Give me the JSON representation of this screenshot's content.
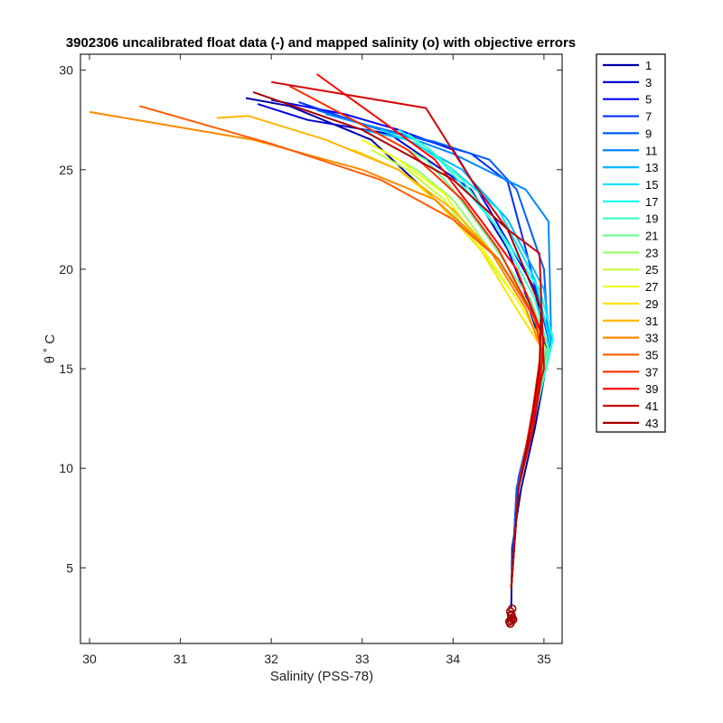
{
  "chart_data": {
    "type": "line",
    "title": "3902306 uncalibrated float data (-) and mapped salinity (o) with objective errors",
    "xlabel": "Salinity (PSS-78)",
    "ylabel": "θ ˚ C",
    "xlim": [
      29.9,
      35.2
    ],
    "ylim": [
      1.2,
      30.8
    ],
    "xticks": [
      "30",
      "31",
      "32",
      "33",
      "34",
      "35"
    ],
    "yticks": [
      "5",
      "10",
      "15",
      "20",
      "25",
      "30"
    ],
    "grid": false,
    "legend_position": "outside-right",
    "colormap": "jet",
    "legend": [
      "1",
      "3",
      "5",
      "7",
      "9",
      "11",
      "13",
      "15",
      "17",
      "19",
      "21",
      "23",
      "25",
      "27",
      "29",
      "31",
      "33",
      "35",
      "37",
      "39",
      "41",
      "43"
    ],
    "series": [
      {
        "name": "1",
        "x": [
          31.72,
          32.2,
          33.1,
          33.8,
          34.4,
          34.8,
          34.95,
          35.0,
          34.9,
          34.75,
          34.65,
          34.64
        ],
        "y": [
          28.6,
          28.2,
          26.5,
          23.5,
          21.0,
          18.5,
          16.5,
          14.5,
          12.0,
          9.0,
          6.0,
          3.0
        ]
      },
      {
        "name": "3",
        "x": [
          31.85,
          32.4,
          33.3,
          34.2,
          34.6,
          34.95,
          35.0,
          34.88,
          34.72,
          34.64
        ],
        "y": [
          28.3,
          27.5,
          26.8,
          24.0,
          21.0,
          17.0,
          15.5,
          12.5,
          9.0,
          4.0
        ]
      },
      {
        "name": "5",
        "x": [
          32.0,
          32.8,
          33.4,
          34.0,
          34.4,
          34.9,
          35.02,
          34.9,
          34.72,
          34.64
        ],
        "y": [
          28.5,
          27.8,
          27.0,
          26.0,
          23.0,
          19.0,
          16.0,
          13.0,
          9.5,
          4.0
        ]
      },
      {
        "name": "7",
        "x": [
          32.3,
          33.0,
          33.6,
          34.2,
          34.6,
          34.8,
          35.05,
          34.9,
          34.7,
          34.64
        ],
        "y": [
          28.4,
          27.3,
          26.6,
          25.8,
          24.4,
          21.0,
          16.5,
          13.0,
          9.0,
          4.0
        ]
      },
      {
        "name": "9",
        "x": [
          32.5,
          33.2,
          33.8,
          34.4,
          34.7,
          35.0,
          35.05,
          34.9,
          34.7,
          34.64
        ],
        "y": [
          28.0,
          27.0,
          26.4,
          25.5,
          24.0,
          20.0,
          16.3,
          13.0,
          9.0,
          4.0
        ]
      },
      {
        "name": "11",
        "x": [
          32.6,
          33.4,
          34.0,
          34.8,
          35.05,
          35.08,
          34.92,
          34.72,
          34.64
        ],
        "y": [
          27.8,
          26.8,
          25.8,
          24.0,
          22.4,
          16.5,
          13.0,
          9.0,
          4.0
        ]
      },
      {
        "name": "13",
        "x": [
          33.0,
          33.5,
          34.1,
          34.6,
          35.0,
          35.08,
          34.92,
          34.72,
          34.64
        ],
        "y": [
          27.0,
          26.5,
          25.0,
          22.5,
          19.0,
          16.2,
          13.0,
          9.0,
          4.0
        ]
      },
      {
        "name": "15",
        "x": [
          33.2,
          33.6,
          34.0,
          34.5,
          34.9,
          35.06,
          34.92,
          34.72,
          34.64
        ],
        "y": [
          27.0,
          26.3,
          25.0,
          23.0,
          19.5,
          16.5,
          13.0,
          9.0,
          4.0
        ]
      },
      {
        "name": "17",
        "x": [
          33.4,
          33.75,
          34.05,
          34.5,
          34.95,
          35.1,
          34.92,
          34.72,
          34.64
        ],
        "y": [
          27.0,
          26.0,
          24.5,
          22.0,
          19.0,
          16.5,
          13.0,
          9.0,
          4.0
        ]
      },
      {
        "name": "19",
        "x": [
          33.5,
          33.8,
          34.1,
          34.5,
          34.9,
          35.05,
          34.92,
          34.72,
          34.64
        ],
        "y": [
          26.8,
          25.8,
          24.5,
          22.0,
          18.5,
          16.0,
          13.0,
          9.0,
          4.0
        ]
      },
      {
        "name": "21",
        "x": [
          33.3,
          33.7,
          34.0,
          34.4,
          34.85,
          35.05,
          34.92,
          34.72,
          34.64
        ],
        "y": [
          26.5,
          25.5,
          24.0,
          21.5,
          18.5,
          16.0,
          13.0,
          9.0,
          4.0
        ]
      },
      {
        "name": "23",
        "x": [
          33.2,
          33.6,
          34.0,
          34.4,
          34.8,
          35.02,
          34.9,
          34.72,
          34.64
        ],
        "y": [
          26.0,
          25.0,
          23.5,
          21.0,
          18.5,
          16.0,
          13.0,
          9.0,
          4.0
        ]
      },
      {
        "name": "25",
        "x": [
          33.1,
          33.5,
          33.9,
          34.3,
          34.7,
          35.0,
          34.9,
          34.72,
          34.64
        ],
        "y": [
          26.0,
          25.0,
          23.5,
          21.0,
          18.5,
          16.2,
          13.0,
          9.0,
          4.0
        ]
      },
      {
        "name": "27",
        "x": [
          33.0,
          33.4,
          33.9,
          34.3,
          34.7,
          34.98,
          34.88,
          34.72,
          34.64
        ],
        "y": [
          26.5,
          25.5,
          23.8,
          21.2,
          18.5,
          16.3,
          13.0,
          9.0,
          4.0
        ]
      },
      {
        "name": "29",
        "x": [
          32.9,
          33.4,
          33.8,
          34.3,
          34.7,
          34.98,
          34.88,
          34.72,
          34.64
        ],
        "y": [
          26.0,
          25.0,
          23.5,
          21.0,
          18.0,
          16.0,
          13.0,
          9.0,
          4.0
        ]
      },
      {
        "name": "31",
        "x": [
          31.4,
          31.75,
          32.6,
          33.4,
          34.0,
          34.5,
          34.9,
          34.98,
          34.88,
          34.72,
          34.64
        ],
        "y": [
          27.6,
          27.7,
          26.5,
          25.0,
          23.0,
          20.5,
          17.5,
          16.0,
          13.0,
          9.0,
          4.0
        ]
      },
      {
        "name": "33",
        "x": [
          30.0,
          31.8,
          33.0,
          33.8,
          34.4,
          34.8,
          34.97,
          34.88,
          34.72,
          34.64
        ],
        "y": [
          27.9,
          26.5,
          25.0,
          23.5,
          21.0,
          18.0,
          16.0,
          13.0,
          9.0,
          4.0
        ]
      },
      {
        "name": "35",
        "x": [
          30.55,
          32.0,
          33.2,
          34.0,
          34.5,
          34.9,
          34.97,
          34.88,
          34.72,
          34.64
        ],
        "y": [
          28.2,
          26.3,
          24.5,
          22.5,
          20.5,
          17.5,
          16.0,
          13.0,
          9.0,
          4.0
        ]
      },
      {
        "name": "37",
        "x": [
          32.2,
          32.9,
          33.5,
          34.1,
          34.5,
          34.9,
          34.97,
          34.88,
          34.72,
          34.64
        ],
        "y": [
          29.2,
          27.5,
          26.0,
          23.5,
          21.0,
          17.5,
          16.0,
          13.0,
          9.0,
          4.0
        ]
      },
      {
        "name": "39",
        "x": [
          32.5,
          33.2,
          33.8,
          34.3,
          34.7,
          35.0,
          34.97,
          34.88,
          34.72,
          34.64
        ],
        "y": [
          29.8,
          27.5,
          25.5,
          22.5,
          20.0,
          16.5,
          15.0,
          12.5,
          9.0,
          4.0
        ]
      },
      {
        "name": "41",
        "x": [
          32.0,
          33.7,
          34.2,
          34.6,
          34.95,
          35.0,
          34.97,
          34.88,
          34.72,
          34.64
        ],
        "y": [
          29.4,
          28.1,
          24.5,
          22.0,
          20.8,
          15.0,
          14.5,
          12.0,
          9.0,
          4.0
        ]
      },
      {
        "name": "43",
        "x": [
          31.8,
          33.0,
          34.0,
          34.6,
          34.97,
          34.95,
          34.85,
          34.72,
          34.64
        ],
        "y": [
          28.9,
          27.0,
          24.5,
          22.0,
          18.0,
          15.0,
          12.0,
          9.0,
          4.0
        ]
      }
    ],
    "mapped_salinity_markers": {
      "color": "#a00000",
      "x": [
        34.63,
        34.64,
        34.65,
        34.64,
        34.63,
        34.65,
        34.64,
        34.66,
        34.62
      ],
      "y": [
        2.2,
        2.35,
        2.5,
        2.65,
        2.8,
        2.95,
        2.6,
        2.4,
        2.3
      ]
    }
  }
}
